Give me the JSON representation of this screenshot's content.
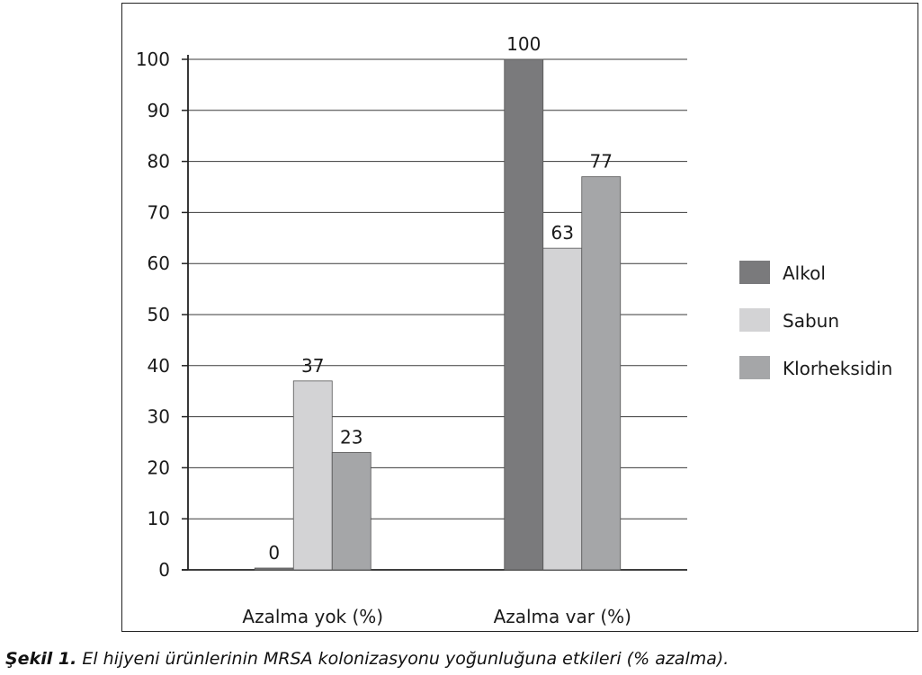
{
  "chart_data": {
    "type": "bar",
    "categories": [
      "Azalma yok (%)",
      "Azalma var (%)"
    ],
    "series": [
      {
        "name": "Alkol",
        "values": [
          0,
          100
        ],
        "labels": [
          "0",
          "100"
        ],
        "color": "#7a7a7c"
      },
      {
        "name": "Sabun",
        "values": [
          37,
          63
        ],
        "labels": [
          "37",
          "63"
        ],
        "color": "#d3d3d5"
      },
      {
        "name": "Klorheksidin",
        "values": [
          23,
          77
        ],
        "labels": [
          "23",
          "77"
        ],
        "color": "#a5a6a8"
      }
    ],
    "ylim": [
      0,
      100
    ],
    "yticks": [
      0,
      10,
      20,
      30,
      40,
      50,
      60,
      70,
      80,
      90,
      100
    ],
    "grid": true,
    "legend": "right"
  },
  "caption": {
    "label": "Şekil 1.",
    "text": " El hijyeni ürünlerinin MRSA kolonizasyonu yoğunluğuna etkileri (% azalma)."
  }
}
